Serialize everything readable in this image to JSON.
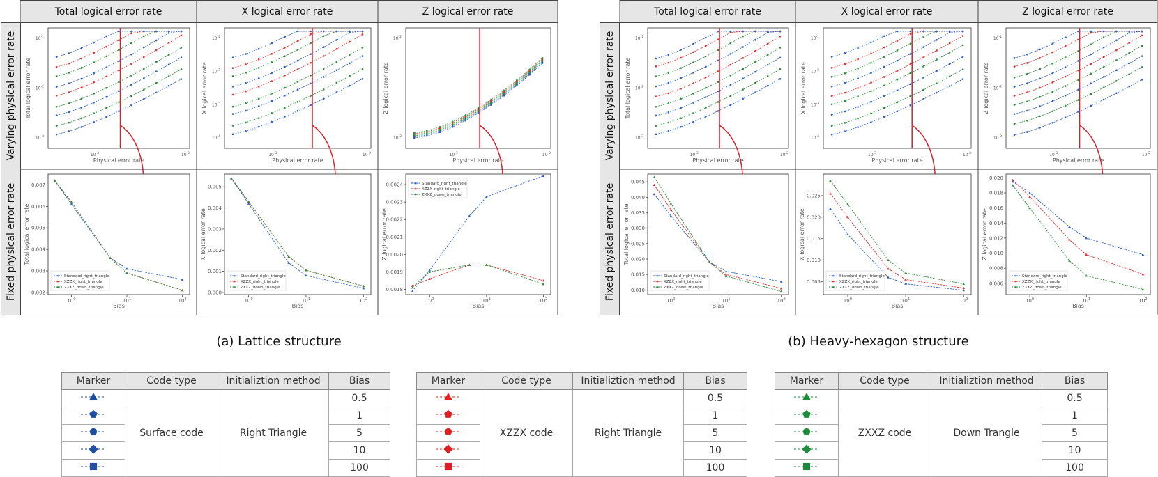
{
  "figure": {
    "column_headers": [
      "Total logical error rate",
      "X logical error rate",
      "Z logical error rate"
    ],
    "row_headers": [
      "Varying physical error rate",
      "Fixed physical error rate"
    ],
    "captions": [
      "(a) Lattice structure",
      "(b) Heavy-hexagon structure"
    ],
    "highlight_color": "#d9202a"
  },
  "chart_data": [
    {
      "panel": "a-varying-total",
      "type": "line",
      "xscale": "log",
      "yscale": "log",
      "xlabel": "Physical error rate",
      "ylabel": "Total logical error rate",
      "xticks": [
        "10^-3",
        "10^-2"
      ],
      "yticks": [
        "10^-1",
        "10^-2",
        "10^-3"
      ],
      "marker_x": "0.005"
    },
    {
      "panel": "a-varying-x",
      "type": "line",
      "xscale": "log",
      "yscale": "log",
      "xlabel": "Physical error rate",
      "ylabel": "X logical error rate",
      "xticks": [
        "10^-3",
        "10^-2"
      ],
      "yticks": [
        "10^-1",
        "10^-2",
        "10^-3",
        "10^-4"
      ],
      "marker_x": "0.005"
    },
    {
      "panel": "a-varying-z",
      "type": "line",
      "xscale": "log",
      "yscale": "log",
      "xlabel": "Physical error rate",
      "ylabel": "Z logical error rate",
      "xticks": [
        "10^-3",
        "10^-2"
      ],
      "yticks": [
        "10^-2",
        "10^-3"
      ],
      "marker_x": "0.005"
    },
    {
      "panel": "a-fixed-total",
      "type": "line",
      "xscale": "log",
      "xlabel": "Bias",
      "ylabel": "Total logical error rate",
      "ylim": [
        0.0019,
        0.0075
      ],
      "yticks": [
        "0.002",
        "0.003",
        "0.004",
        "0.005",
        "0.006",
        "0.007"
      ],
      "xticks": [
        "10^0",
        "10^1",
        "10^2"
      ],
      "x": [
        0.5,
        1,
        5,
        10,
        100
      ],
      "series": [
        {
          "name": "Standard_right_triangle",
          "values": [
            0.0072,
            0.0061,
            0.0036,
            0.0031,
            0.0026
          ]
        },
        {
          "name": "XZZX_right_triangle",
          "values": [
            0.0072,
            0.0062,
            0.0036,
            0.0029,
            0.0021
          ]
        },
        {
          "name": "ZXXZ_down_triangle",
          "values": [
            0.0072,
            0.0062,
            0.0036,
            0.0029,
            0.0021
          ]
        }
      ],
      "legend": "lower-left"
    },
    {
      "panel": "a-fixed-x",
      "type": "line",
      "xscale": "log",
      "xlabel": "Bias",
      "ylabel": "X logical error rate",
      "ylim": [
        -0.0001,
        0.0056
      ],
      "yticks": [
        "0.000",
        "0.001",
        "0.002",
        "0.003",
        "0.004",
        "0.005"
      ],
      "xticks": [
        "10^0",
        "10^1",
        "10^2"
      ],
      "x": [
        0.5,
        1,
        5,
        10,
        100
      ],
      "series": [
        {
          "name": "Standard_right_triangle",
          "values": [
            0.0054,
            0.0042,
            0.0014,
            0.0008,
            0.0002
          ]
        },
        {
          "name": "XZZX_right_triangle",
          "values": [
            0.0054,
            0.0043,
            0.0017,
            0.00105,
            0.0003
          ]
        },
        {
          "name": "ZXXZ_down_triangle",
          "values": [
            0.0054,
            0.0043,
            0.0017,
            0.00105,
            0.0003
          ]
        }
      ],
      "legend": "lower-left"
    },
    {
      "panel": "a-fixed-z",
      "type": "line",
      "xscale": "log",
      "xlabel": "Bias",
      "ylabel": "Z logical error rate",
      "ylim": [
        0.00177,
        0.00246
      ],
      "yticks": [
        "0.0018",
        "0.0019",
        "0.0020",
        "0.0021",
        "0.0022",
        "0.0023",
        "0.0024"
      ],
      "xticks": [
        "10^0",
        "10^1",
        "10^2"
      ],
      "x": [
        0.5,
        1,
        5,
        10,
        100
      ],
      "series": [
        {
          "name": "Standard_right_triangle",
          "values": [
            0.00179,
            0.00191,
            0.00222,
            0.00233,
            0.00245
          ]
        },
        {
          "name": "XZZX_right_triangle",
          "values": [
            0.00182,
            0.00186,
            0.00194,
            0.00194,
            0.00185
          ]
        },
        {
          "name": "ZXXZ_down_triangle",
          "values": [
            0.00181,
            0.0019,
            0.00194,
            0.00194,
            0.00183
          ]
        }
      ],
      "legend": "top-left"
    },
    {
      "panel": "b-varying-total",
      "type": "line",
      "xscale": "log",
      "yscale": "log",
      "xlabel": "Physical error rate",
      "ylabel": "Total logical error rate",
      "xticks": [
        "10^-3",
        "10^-2"
      ],
      "yticks": [
        "10^-1",
        "10^-2",
        "10^-3"
      ],
      "marker_x": "0.005"
    },
    {
      "panel": "b-varying-x",
      "type": "line",
      "xscale": "log",
      "yscale": "log",
      "xlabel": "Physical error rate",
      "ylabel": "X logical error rate",
      "xticks": [
        "10^-3",
        "10^-2"
      ],
      "yticks": [
        "10^-1",
        "10^-2",
        "10^-3",
        "10^-4"
      ],
      "marker_x": "0.005"
    },
    {
      "panel": "b-varying-z",
      "type": "line",
      "xscale": "log",
      "yscale": "log",
      "xlabel": "Physical error rate",
      "ylabel": "Z logical error rate",
      "xticks": [
        "10^-3",
        "10^-2"
      ],
      "yticks": [
        "10^-1",
        "10^-2",
        "10^-3"
      ],
      "marker_x": "0.005"
    },
    {
      "panel": "b-fixed-total",
      "type": "line",
      "xscale": "log",
      "xlabel": "Bias",
      "ylabel": "Total logical error rate",
      "ylim": [
        0.0085,
        0.0475
      ],
      "yticks": [
        "0.010",
        "0.015",
        "0.020",
        "0.025",
        "0.030",
        "0.035",
        "0.040",
        "0.045"
      ],
      "xticks": [
        "10^0",
        "10^1",
        "10^2"
      ],
      "x": [
        0.5,
        1,
        5,
        10,
        100
      ],
      "series": [
        {
          "name": "Standard_right_triangle",
          "values": [
            0.041,
            0.034,
            0.019,
            0.016,
            0.0127
          ]
        },
        {
          "name": "XZZX_right_triangle",
          "values": [
            0.044,
            0.036,
            0.019,
            0.015,
            0.0105
          ]
        },
        {
          "name": "ZXXZ_down_triangle",
          "values": [
            0.0465,
            0.038,
            0.019,
            0.0145,
            0.0095
          ]
        }
      ],
      "legend": "lower-left"
    },
    {
      "panel": "b-fixed-x",
      "type": "line",
      "xscale": "log",
      "xlabel": "Bias",
      "ylabel": "X logical error rate",
      "ylim": [
        0.002,
        0.03
      ],
      "yticks": [
        "0.005",
        "0.010",
        "0.015",
        "0.020",
        "0.025"
      ],
      "xticks": [
        "10^0",
        "10^1",
        "10^2"
      ],
      "x": [
        0.5,
        1,
        5,
        10,
        100
      ],
      "series": [
        {
          "name": "Standard_right_triangle",
          "values": [
            0.022,
            0.016,
            0.006,
            0.0045,
            0.003
          ]
        },
        {
          "name": "XZZX_right_triangle",
          "values": [
            0.0255,
            0.02,
            0.008,
            0.0055,
            0.0035
          ]
        },
        {
          "name": "ZXXZ_down_triangle",
          "values": [
            0.0285,
            0.023,
            0.01,
            0.007,
            0.0045
          ]
        }
      ],
      "legend": "lower-left"
    },
    {
      "panel": "b-fixed-z",
      "type": "line",
      "xscale": "log",
      "xlabel": "Bias",
      "ylabel": "Z logical error rate",
      "ylim": [
        0.0045,
        0.0205
      ],
      "yticks": [
        "0.006",
        "0.008",
        "0.010",
        "0.012",
        "0.014",
        "0.016",
        "0.018",
        "0.020"
      ],
      "xticks": [
        "10^0",
        "10^1",
        "10^2"
      ],
      "x": [
        0.5,
        1,
        5,
        10,
        100
      ],
      "series": [
        {
          "name": "Standard_right_triangle",
          "values": [
            0.0195,
            0.018,
            0.0135,
            0.012,
            0.0098
          ]
        },
        {
          "name": "XZZX_right_triangle",
          "values": [
            0.0197,
            0.0175,
            0.0118,
            0.0098,
            0.0072
          ]
        },
        {
          "name": "ZXXZ_down_triangle",
          "values": [
            0.019,
            0.016,
            0.009,
            0.007,
            0.0052
          ]
        }
      ],
      "legend": "lower-left"
    }
  ],
  "legend_tables": [
    {
      "color": "#1f4fa3",
      "code_type": "Surface code",
      "init_method": "Right Triangle"
    },
    {
      "color": "#e02020",
      "code_type": "XZZX code",
      "init_method": "Right Triangle"
    },
    {
      "color": "#1e8a3c",
      "code_type": "ZXXZ code",
      "init_method": "Down Trangle"
    }
  ],
  "legend_header": [
    "Marker",
    "Code type",
    "Initializtion method",
    "Bias"
  ],
  "bias_values": [
    "0.5",
    "1",
    "5",
    "10",
    "100"
  ],
  "marker_shapes": [
    "triangle",
    "pentagon",
    "circle",
    "diamond",
    "square"
  ],
  "series_colors": {
    "standard": "#2b5fc7",
    "xzzx": "#e03030",
    "zxxz": "#2e8b3a"
  }
}
